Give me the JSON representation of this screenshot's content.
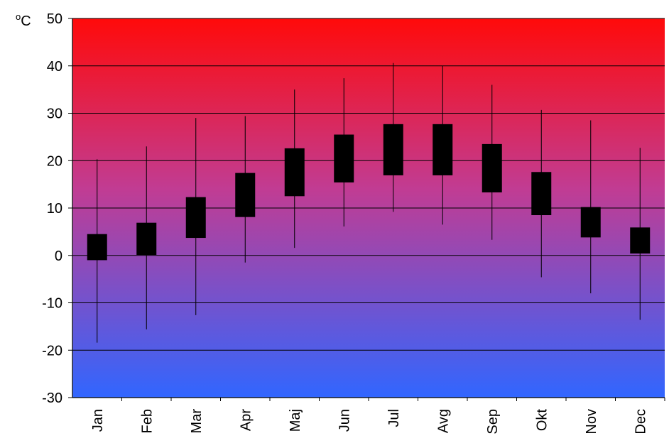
{
  "chart_data": {
    "type": "box",
    "unit_label": {
      "base": "C",
      "superscript": "o"
    },
    "categories": [
      "Jan",
      "Feb",
      "Mar",
      "Apr",
      "Maj",
      "Jun",
      "Jul",
      "Avg",
      "Sep",
      "Okt",
      "Nov",
      "Dec"
    ],
    "series": [
      {
        "max": [
          20.3,
          23.0,
          29.0,
          29.4,
          35.0,
          37.4,
          40.6,
          40.0,
          36.0,
          30.7,
          28.5,
          22.7
        ],
        "box_top": [
          4.5,
          6.9,
          12.3,
          17.4,
          22.6,
          25.5,
          27.7,
          27.7,
          23.5,
          17.6,
          10.2,
          5.9
        ],
        "box_bottom": [
          -1.0,
          0.1,
          3.7,
          8.1,
          12.5,
          15.4,
          16.9,
          16.9,
          13.3,
          8.5,
          3.8,
          0.4
        ],
        "min": [
          -18.4,
          -15.6,
          -12.6,
          -1.5,
          1.6,
          6.1,
          9.2,
          6.5,
          3.3,
          -4.6,
          -8.0,
          -13.6
        ]
      }
    ],
    "ylim": [
      -30,
      50
    ],
    "yticks": [
      -30,
      -20,
      -10,
      0,
      10,
      20,
      30,
      40,
      50
    ],
    "grid": true,
    "background_gradient": {
      "top": "#ff0a0a",
      "mid": "#c13c93",
      "bottom": "#3166ff"
    }
  }
}
